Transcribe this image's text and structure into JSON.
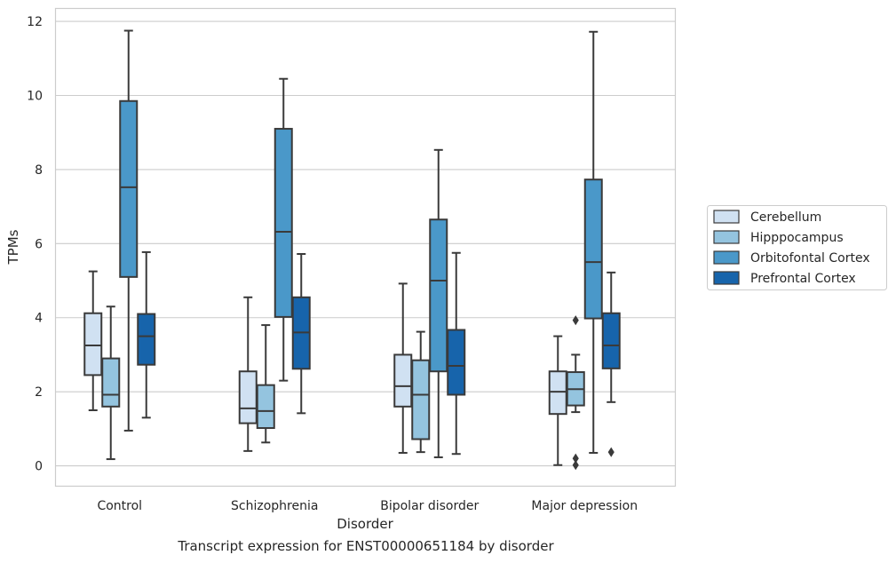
{
  "caption": "Transcript expression for ENST00000651184 by disorder",
  "colors": {
    "Cerebellum": "#d0e1f2",
    "Hipppocampus": "#94c4df",
    "Orbitofontal Cortex": "#4a98c9",
    "Prefrontal Cortex": "#1764ab",
    "edge": "#3a3a3a",
    "grid": "#cccccc",
    "frame": "#cccccc"
  },
  "chart_data": {
    "type": "box",
    "title": "",
    "xlabel": "Disorder",
    "ylabel": "TPMs",
    "ylim": [
      -0.55,
      12.35
    ],
    "yticks": [
      0,
      2,
      4,
      6,
      8,
      10,
      12
    ],
    "grid": true,
    "legend_position": "right",
    "categories": [
      "Control",
      "Schizophrenia",
      "Bipolar disorder",
      "Major depression"
    ],
    "series": [
      {
        "name": "Cerebellum",
        "boxes": [
          {
            "whislo": 1.5,
            "q1": 2.45,
            "med": 3.25,
            "q3": 4.12,
            "whishi": 5.25,
            "fliers": []
          },
          {
            "whislo": 0.4,
            "q1": 1.15,
            "med": 1.55,
            "q3": 2.55,
            "whishi": 4.55,
            "fliers": []
          },
          {
            "whislo": 0.35,
            "q1": 1.6,
            "med": 2.15,
            "q3": 3.0,
            "whishi": 4.92,
            "fliers": []
          },
          {
            "whislo": 0.02,
            "q1": 1.4,
            "med": 2.0,
            "q3": 2.55,
            "whishi": 3.5,
            "fliers": []
          }
        ]
      },
      {
        "name": "Hipppocampus",
        "boxes": [
          {
            "whislo": 0.18,
            "q1": 1.6,
            "med": 1.92,
            "q3": 2.9,
            "whishi": 4.3,
            "fliers": []
          },
          {
            "whislo": 0.63,
            "q1": 1.02,
            "med": 1.48,
            "q3": 2.18,
            "whishi": 3.8,
            "fliers": []
          },
          {
            "whislo": 0.37,
            "q1": 0.72,
            "med": 1.92,
            "q3": 2.85,
            "whishi": 3.62,
            "fliers": []
          },
          {
            "whislo": 1.45,
            "q1": 1.63,
            "med": 2.07,
            "q3": 2.53,
            "whishi": 3.0,
            "fliers": [
              3.93,
              0.2,
              0.02
            ]
          }
        ]
      },
      {
        "name": "Orbitofontal Cortex",
        "boxes": [
          {
            "whislo": 0.95,
            "q1": 5.1,
            "med": 7.52,
            "q3": 9.85,
            "whishi": 11.75,
            "fliers": []
          },
          {
            "whislo": 2.3,
            "q1": 4.02,
            "med": 6.32,
            "q3": 9.1,
            "whishi": 10.45,
            "fliers": []
          },
          {
            "whislo": 0.23,
            "q1": 2.55,
            "med": 5.0,
            "q3": 6.65,
            "whishi": 8.53,
            "fliers": []
          },
          {
            "whislo": 0.35,
            "q1": 3.98,
            "med": 5.5,
            "q3": 7.73,
            "whishi": 11.72,
            "fliers": []
          }
        ]
      },
      {
        "name": "Prefrontal Cortex",
        "boxes": [
          {
            "whislo": 1.3,
            "q1": 2.73,
            "med": 3.5,
            "q3": 4.1,
            "whishi": 5.77,
            "fliers": []
          },
          {
            "whislo": 1.42,
            "q1": 2.62,
            "med": 3.6,
            "q3": 4.55,
            "whishi": 5.72,
            "fliers": []
          },
          {
            "whislo": 0.32,
            "q1": 1.92,
            "med": 2.7,
            "q3": 3.67,
            "whishi": 5.75,
            "fliers": []
          },
          {
            "whislo": 1.72,
            "q1": 2.63,
            "med": 3.25,
            "q3": 4.12,
            "whishi": 5.22,
            "fliers": [
              0.37
            ]
          }
        ]
      }
    ]
  }
}
